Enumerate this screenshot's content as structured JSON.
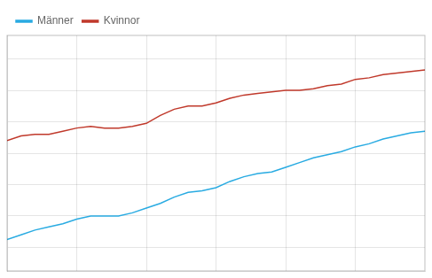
{
  "chart_data": {
    "type": "line",
    "x": [
      1979,
      1980,
      1981,
      1982,
      1983,
      1984,
      1985,
      1986,
      1987,
      1988,
      1989,
      1990,
      1991,
      1992,
      1993,
      1994,
      1995,
      1996,
      1997,
      1998,
      1999,
      2000,
      2001,
      2002,
      2003,
      2004,
      2005,
      2006,
      2007,
      2008,
      2009
    ],
    "series": [
      {
        "name": "Männer",
        "color": "#29ABE2",
        "values": [
          72.5,
          72.8,
          73.1,
          73.3,
          73.5,
          73.8,
          74.0,
          74.0,
          74.0,
          74.2,
          74.5,
          74.8,
          75.2,
          75.5,
          75.6,
          75.8,
          76.2,
          76.5,
          76.7,
          76.8,
          77.1,
          77.4,
          77.7,
          77.9,
          78.1,
          78.4,
          78.6,
          78.9,
          79.1,
          79.3,
          79.4
        ]
      },
      {
        "name": "Kvinnor",
        "color": "#C0392B",
        "values": [
          78.8,
          79.1,
          79.2,
          79.2,
          79.4,
          79.6,
          79.7,
          79.6,
          79.6,
          79.7,
          79.9,
          80.4,
          80.8,
          81.0,
          81.0,
          81.2,
          81.5,
          81.7,
          81.8,
          81.9,
          82.0,
          82.0,
          82.1,
          82.3,
          82.4,
          82.7,
          82.8,
          83.0,
          83.1,
          83.2,
          83.3
        ]
      }
    ],
    "xlim": [
      1979,
      2009
    ],
    "ylim": [
      70.5,
      85.5
    ],
    "xticks": [
      1984,
      1989,
      1994,
      1999,
      2004
    ],
    "yticks": [
      72,
      74,
      76,
      78,
      80,
      82,
      84
    ],
    "grid": true,
    "legend": "upper left",
    "tick_labels": false
  }
}
